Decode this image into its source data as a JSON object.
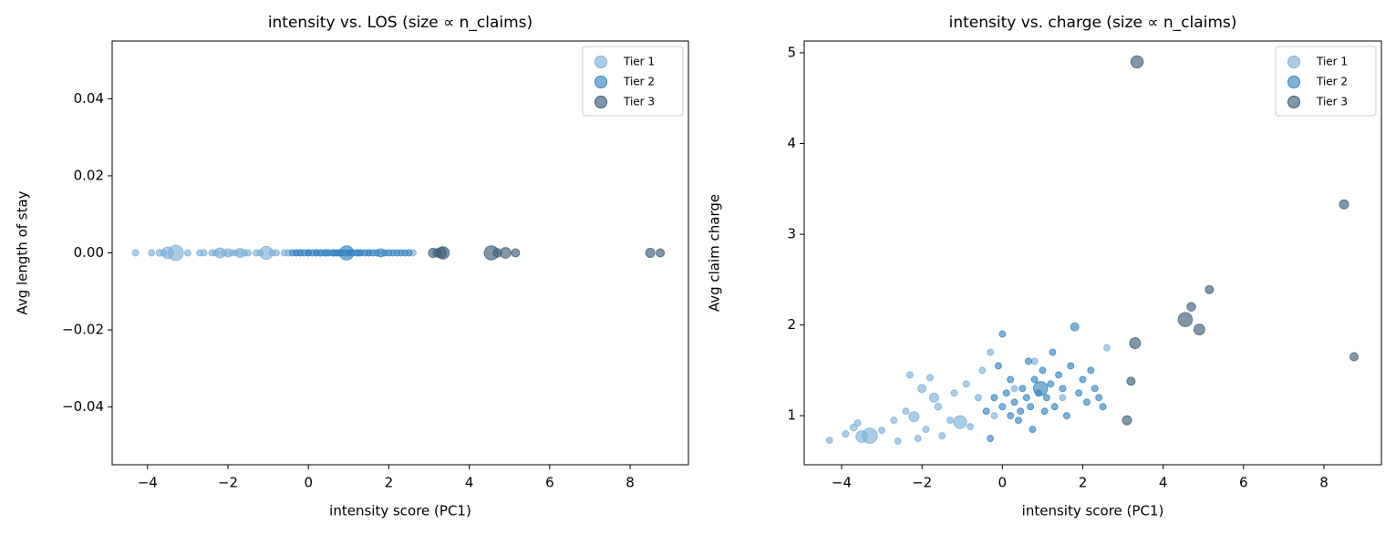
{
  "chart_data": [
    {
      "type": "scatter",
      "title": "intensity vs. LOS (size ∝ n_claims)",
      "x_label": "intensity score (PC1)",
      "y_label": "Avg length of stay",
      "xlim": [
        -4.88,
        9.45
      ],
      "ylim": [
        -0.055,
        0.055
      ],
      "xticks": [
        {
          "value": -4,
          "label": "−4"
        },
        {
          "value": -2,
          "label": "−2"
        },
        0,
        2,
        4,
        6,
        8
      ],
      "yticks": [
        {
          "value": -0.04,
          "label": "−0.04"
        },
        {
          "value": -0.02,
          "label": "−0.02"
        },
        {
          "value": 0,
          "label": "0.00"
        },
        0.02,
        0.04
      ],
      "legend": "upper right",
      "series": [
        {
          "name": "Tier 1",
          "color": "#7fb0d8",
          "x": [
            -4.3,
            -3.9,
            -3.7,
            -3.5,
            -3.3,
            -3.6,
            -3.0,
            -2.7,
            -2.6,
            -2.4,
            -2.3,
            -2.2,
            -2.0,
            -1.9,
            -1.8,
            -1.6,
            -1.5,
            -1.3,
            -1.2,
            -1.05,
            -0.9,
            -0.8,
            -0.6,
            -0.5,
            -0.3,
            -0.2,
            0.3,
            0.8,
            1.5,
            2.6,
            -2.1,
            -1.7
          ],
          "values": [
            0,
            0,
            0,
            0,
            0,
            0,
            0,
            0,
            0,
            0,
            0,
            0,
            0,
            0,
            0,
            0,
            0,
            0,
            0,
            0,
            0,
            0,
            0,
            0,
            0,
            0,
            0,
            0,
            0,
            0,
            0,
            0
          ],
          "sizes": [
            12,
            12,
            14,
            40,
            70,
            12,
            12,
            12,
            12,
            12,
            12,
            30,
            20,
            12,
            12,
            14,
            12,
            12,
            12,
            50,
            12,
            12,
            12,
            12,
            12,
            12,
            12,
            12,
            12,
            12,
            12,
            25
          ]
        },
        {
          "name": "Tier 2",
          "color": "#3a85c0",
          "x": [
            -0.4,
            -0.2,
            0,
            0.1,
            0.2,
            0.3,
            0.4,
            0.5,
            0.6,
            0.7,
            0.8,
            0.9,
            0.95,
            1.0,
            1.1,
            1.2,
            1.3,
            1.4,
            1.5,
            1.6,
            1.7,
            1.8,
            1.9,
            2.0,
            2.1,
            2.2,
            2.3,
            2.5,
            0.0,
            -0.1,
            0.45,
            1.05,
            0.65,
            2.4,
            0.2,
            1.25,
            0.75,
            -0.3
          ],
          "values": [
            0,
            0,
            0,
            0,
            0,
            0,
            0,
            0,
            0,
            0,
            0,
            0,
            0,
            0,
            0,
            0,
            0,
            0,
            0,
            0,
            0,
            0,
            0,
            0,
            0,
            0,
            0,
            0,
            0,
            0,
            0,
            0,
            0,
            0,
            0,
            0,
            0,
            0
          ],
          "sizes": [
            12,
            12,
            12,
            12,
            12,
            12,
            12,
            12,
            12,
            12,
            12,
            12,
            60,
            12,
            12,
            12,
            12,
            12,
            12,
            12,
            12,
            20,
            12,
            12,
            12,
            12,
            12,
            12,
            12,
            12,
            12,
            12,
            12,
            12,
            12,
            12,
            12,
            12
          ]
        },
        {
          "name": "Tier 3",
          "color": "#3f5f77",
          "x": [
            3.35,
            8.5,
            5.15,
            4.7,
            4.55,
            4.9,
            3.3,
            8.75,
            3.2,
            3.1
          ],
          "values": [
            0,
            0,
            0,
            0,
            0,
            0,
            0,
            0,
            0,
            0
          ],
          "sizes": [
            45,
            25,
            20,
            22,
            60,
            35,
            35,
            20,
            20,
            25
          ]
        }
      ]
    },
    {
      "type": "scatter",
      "title": "intensity vs. charge (size ∝ n_claims)",
      "x_label": "intensity score (PC1)",
      "y_label": "Avg claim charge",
      "xlim": [
        -4.93,
        9.43
      ],
      "ylim": [
        0.46,
        5.13
      ],
      "xticks": [
        {
          "value": -4,
          "label": "−4"
        },
        {
          "value": -2,
          "label": "−2"
        },
        0,
        2,
        4,
        6,
        8
      ],
      "yticks": [
        1,
        2,
        3,
        4,
        5
      ],
      "legend": "upper right",
      "series": [
        {
          "name": "Tier 1",
          "color": "#7fb0d8",
          "x": [
            -4.3,
            -3.9,
            -3.7,
            -3.5,
            -3.3,
            -3.6,
            -3.0,
            -2.7,
            -2.6,
            -2.4,
            -2.3,
            -2.2,
            -2.0,
            -1.9,
            -1.8,
            -1.6,
            -1.5,
            -1.3,
            -1.2,
            -1.05,
            -0.9,
            -0.8,
            -0.6,
            -0.5,
            -0.3,
            -0.2,
            0.3,
            0.8,
            1.5,
            2.6,
            -2.1,
            -1.7
          ],
          "values": [
            0.73,
            0.8,
            0.87,
            0.77,
            0.78,
            0.92,
            0.84,
            0.95,
            0.72,
            1.05,
            1.45,
            0.99,
            1.3,
            0.85,
            1.42,
            1.1,
            0.78,
            0.95,
            1.25,
            0.93,
            1.35,
            0.88,
            1.2,
            1.5,
            1.7,
            1.0,
            1.3,
            1.6,
            1.2,
            1.75,
            0.75,
            1.2
          ],
          "sizes": [
            12,
            12,
            14,
            40,
            70,
            12,
            12,
            12,
            12,
            12,
            12,
            30,
            20,
            12,
            12,
            14,
            12,
            12,
            12,
            50,
            12,
            12,
            12,
            12,
            12,
            12,
            12,
            12,
            12,
            12,
            12,
            25
          ]
        },
        {
          "name": "Tier 2",
          "color": "#3a85c0",
          "x": [
            -0.4,
            -0.2,
            0,
            0.1,
            0.2,
            0.3,
            0.4,
            0.5,
            0.6,
            0.7,
            0.8,
            0.9,
            0.95,
            1.0,
            1.1,
            1.2,
            1.3,
            1.4,
            1.5,
            1.6,
            1.7,
            1.8,
            1.9,
            2.0,
            2.1,
            2.2,
            2.3,
            2.5,
            0.0,
            -0.1,
            0.45,
            1.05,
            0.65,
            2.4,
            0.2,
            1.25,
            0.75,
            -0.3
          ],
          "values": [
            1.05,
            1.2,
            1.1,
            1.25,
            1.0,
            1.15,
            0.95,
            1.3,
            1.2,
            1.1,
            1.4,
            1.25,
            1.3,
            1.5,
            1.2,
            1.35,
            1.1,
            1.45,
            1.3,
            1.0,
            1.55,
            1.98,
            1.25,
            1.4,
            1.15,
            1.5,
            1.3,
            1.1,
            1.9,
            1.55,
            1.05,
            1.05,
            1.6,
            1.2,
            1.4,
            1.7,
            0.85,
            0.75
          ],
          "sizes": [
            12,
            12,
            12,
            12,
            12,
            12,
            12,
            12,
            12,
            12,
            12,
            12,
            60,
            12,
            12,
            12,
            12,
            12,
            12,
            12,
            12,
            20,
            12,
            12,
            12,
            12,
            12,
            12,
            12,
            12,
            12,
            12,
            12,
            12,
            12,
            12,
            12,
            12
          ]
        },
        {
          "name": "Tier 3",
          "color": "#3f5f77",
          "x": [
            3.35,
            8.5,
            5.15,
            4.7,
            4.55,
            4.9,
            3.3,
            8.75,
            3.2,
            3.1
          ],
          "values": [
            4.9,
            3.33,
            2.39,
            2.2,
            2.06,
            1.95,
            1.8,
            1.65,
            1.38,
            0.95
          ],
          "sizes": [
            45,
            25,
            20,
            22,
            60,
            35,
            35,
            20,
            20,
            25
          ]
        }
      ]
    }
  ]
}
